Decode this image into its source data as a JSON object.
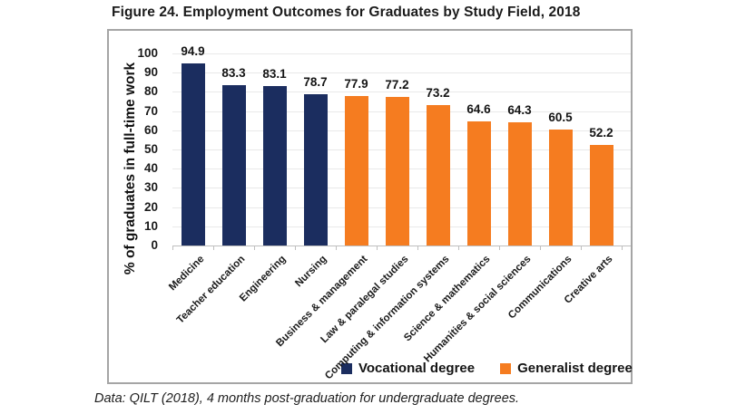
{
  "title": "Figure 24. Employment Outcomes for Graduates by Study Field, 2018",
  "footnote": "Data: QILT (2018), 4 months post-graduation for undergraduate degrees.",
  "chart_data": {
    "type": "bar",
    "title": "Figure 24. Employment Outcomes for Graduates by Study Field, 2018",
    "xlabel": "",
    "ylabel": "% of graduates in full-time work",
    "ylim": [
      0,
      100
    ],
    "ytick_step": 10,
    "grid": true,
    "legend_position": "bottom-inside",
    "series": [
      {
        "name": "Vocational degree",
        "color": "#1b2d5f"
      },
      {
        "name": "Generalist degree",
        "color": "#f57c20"
      }
    ],
    "categories": [
      "Medicine",
      "Teacher education",
      "Engineering",
      "Nursing",
      "Business & management",
      "Law & paralegal studies",
      "Computing & information systems",
      "Science & mathematics",
      "Humanities & social sciences",
      "Communications",
      "Creative arts"
    ],
    "values": [
      94.9,
      83.3,
      83.1,
      78.7,
      77.9,
      77.2,
      73.2,
      64.6,
      64.3,
      60.5,
      52.2
    ],
    "bar_series": [
      "Vocational degree",
      "Vocational degree",
      "Vocational degree",
      "Vocational degree",
      "Generalist degree",
      "Generalist degree",
      "Generalist degree",
      "Generalist degree",
      "Generalist degree",
      "Generalist degree",
      "Generalist degree"
    ]
  }
}
